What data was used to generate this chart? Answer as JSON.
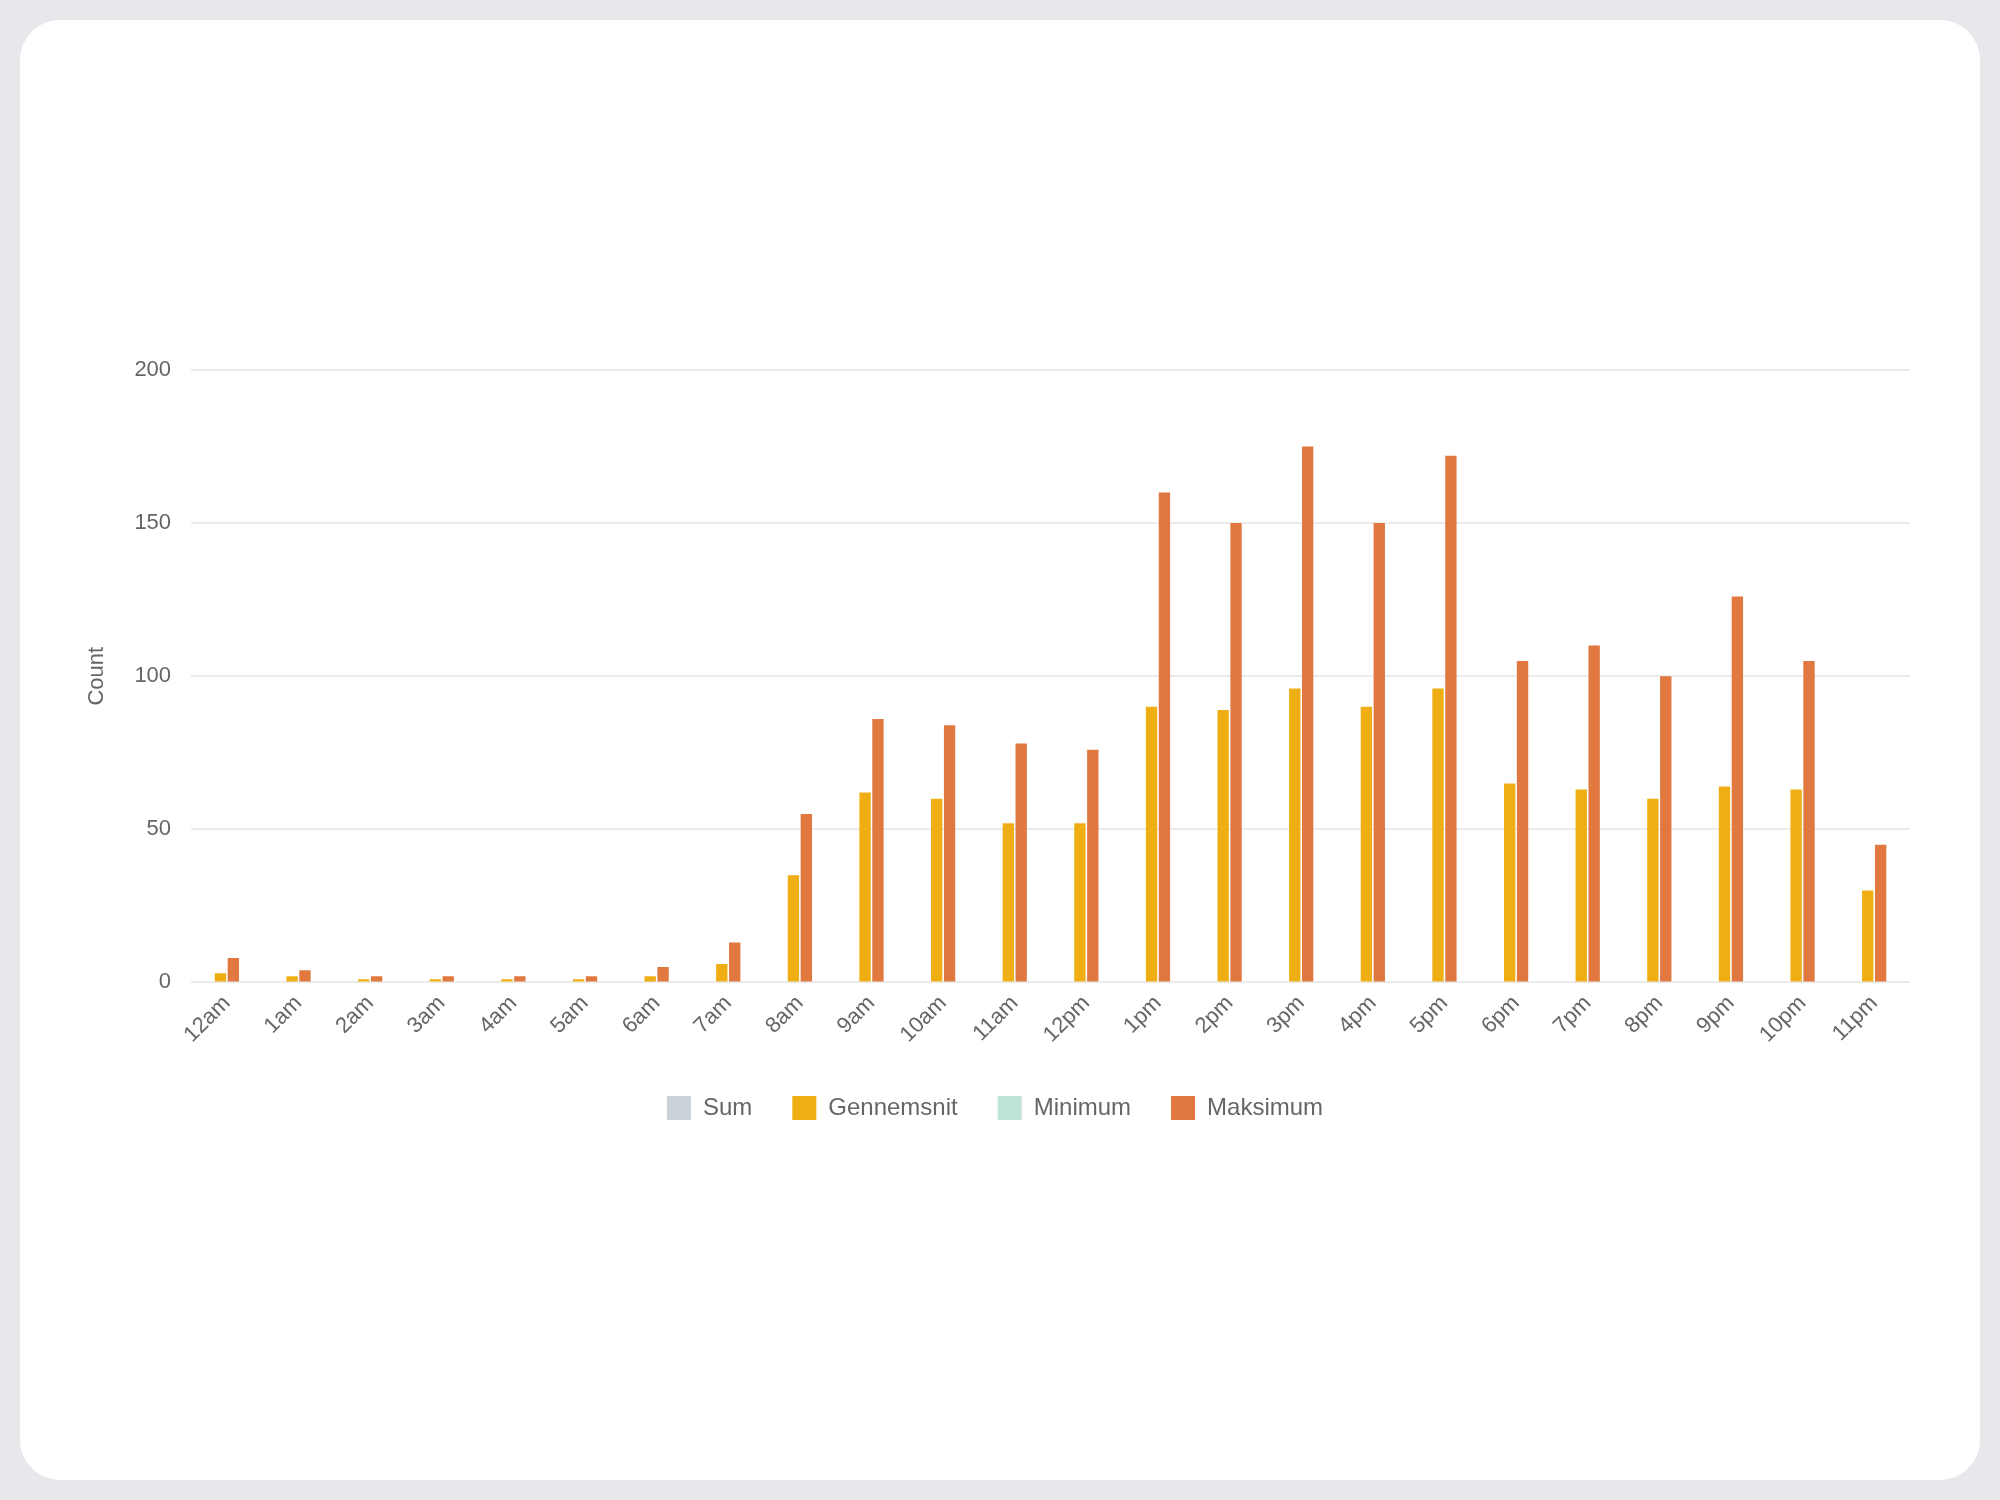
{
  "chart_data": {
    "type": "bar",
    "ylabel": "Count",
    "categories": [
      "12am",
      "1am",
      "2am",
      "3am",
      "4am",
      "5am",
      "6am",
      "7am",
      "8am",
      "9am",
      "10am",
      "11am",
      "12pm",
      "1pm",
      "2pm",
      "3pm",
      "4pm",
      "5pm",
      "6pm",
      "7pm",
      "8pm",
      "9pm",
      "10pm",
      "11pm"
    ],
    "series": [
      {
        "name": "Sum",
        "color": "#c9d3d8",
        "values": [
          null,
          null,
          null,
          null,
          null,
          null,
          null,
          null,
          null,
          null,
          null,
          null,
          null,
          null,
          null,
          null,
          null,
          null,
          null,
          null,
          null,
          null,
          null,
          null
        ]
      },
      {
        "name": "Gennemsnit",
        "color": "#efae14",
        "values": [
          3,
          2,
          1,
          1,
          1,
          1,
          2,
          6,
          35,
          62,
          60,
          52,
          52,
          90,
          89,
          96,
          90,
          96,
          65,
          63,
          60,
          64,
          63,
          30
        ]
      },
      {
        "name": "Minimum",
        "color": "#bfe3d4",
        "values": [
          null,
          null,
          null,
          null,
          null,
          null,
          null,
          null,
          null,
          null,
          null,
          null,
          null,
          null,
          null,
          null,
          null,
          null,
          null,
          null,
          null,
          null,
          null,
          null
        ]
      },
      {
        "name": "Maksimum",
        "color": "#e07840",
        "values": [
          8,
          4,
          2,
          2,
          2,
          2,
          5,
          13,
          55,
          86,
          84,
          78,
          76,
          160,
          150,
          175,
          150,
          172,
          105,
          110,
          100,
          126,
          105,
          45
        ]
      }
    ],
    "ylim": [
      0,
      200
    ],
    "yticks": [
      0,
      50,
      100,
      150,
      200
    ],
    "grid": "y",
    "legend": "bottom"
  }
}
